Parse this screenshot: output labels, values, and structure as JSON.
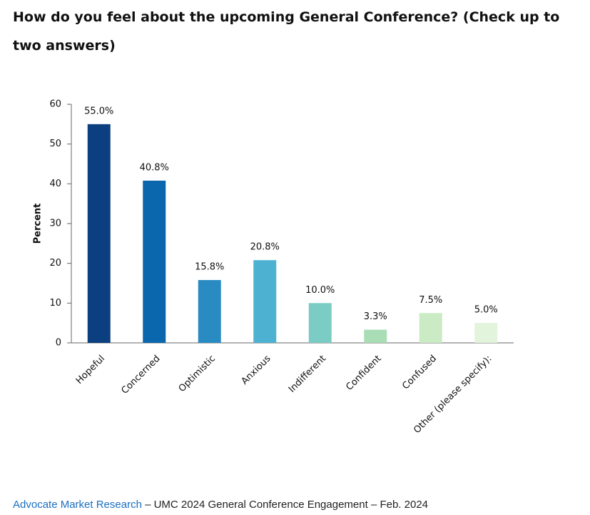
{
  "chart_data": {
    "type": "bar",
    "title": "How do you feel about the upcoming General Conference? (Check up to two answers)",
    "ylabel": "Percent",
    "categories": [
      "Hopeful",
      "Concerned",
      "Optimistic",
      "Anxious",
      "Indifferent",
      "Confident",
      "Confused",
      "Other (please specify):"
    ],
    "values": [
      55.0,
      40.8,
      15.8,
      20.8,
      10.0,
      3.3,
      7.5,
      5.0
    ],
    "value_labels": [
      "55.0%",
      "40.8%",
      "15.8%",
      "20.8%",
      "10.0%",
      "3.3%",
      "7.5%",
      "5.0%"
    ],
    "colors": [
      "#0b3f7f",
      "#0a67ad",
      "#2a8bc2",
      "#4db2d2",
      "#7bccc4",
      "#a8ddb5",
      "#cbebc5",
      "#e2f4dc"
    ],
    "ylim": [
      0,
      60
    ],
    "yticks": [
      0,
      10,
      20,
      30,
      40,
      50,
      60
    ],
    "grid": false
  },
  "footer": {
    "source": "Advocate Market Research",
    "text": " – UMC 2024 General Conference Engagement – Feb. 2024"
  }
}
